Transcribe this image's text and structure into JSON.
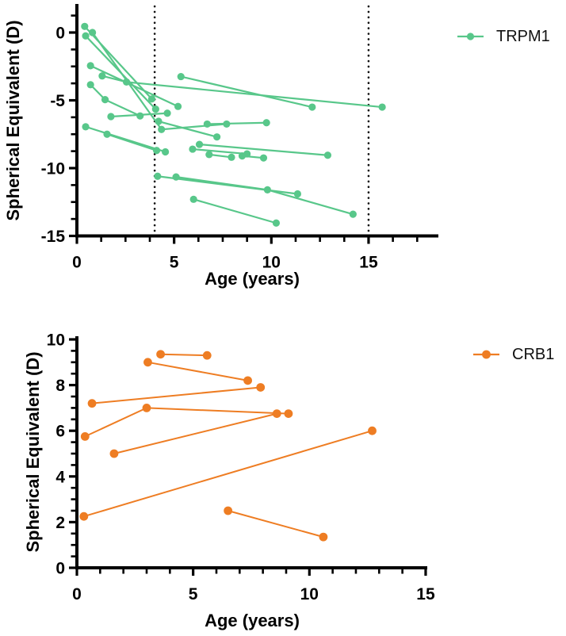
{
  "figure": {
    "background": "#ffffff",
    "text_color": "#000000"
  },
  "chart_data": [
    {
      "type": "line",
      "name": "TRPM1",
      "color": "#58C78A",
      "xlabel": "Age (years)",
      "ylabel": "Spherical Equivalent (D)",
      "xlim": [
        0,
        18.6
      ],
      "ylim": [
        -15,
        1.9
      ],
      "xticks": [
        0,
        5,
        10,
        15
      ],
      "yticks": [
        0,
        -5,
        -10,
        -15
      ],
      "x_minor_step": 1.25,
      "y_minor_step": 1.25,
      "reference_ages": [
        4,
        15
      ],
      "legend_position": "right-top",
      "grid": false,
      "series": [
        {
          "points": [
            [
              0.4,
              0.45
            ],
            [
              3.85,
              -4.9
            ]
          ]
        },
        {
          "points": [
            [
              0.45,
              -0.25
            ],
            [
              4.05,
              -5.65
            ]
          ]
        },
        {
          "points": [
            [
              0.8,
              0.0
            ],
            [
              4.35,
              -7.15
            ],
            [
              7.7,
              -6.75
            ]
          ]
        },
        {
          "points": [
            [
              0.7,
              -2.45
            ],
            [
              5.2,
              -5.45
            ]
          ]
        },
        {
          "points": [
            [
              1.3,
              -3.2
            ],
            [
              2.55,
              -3.65
            ],
            [
              15.7,
              -5.5
            ]
          ]
        },
        {
          "points": [
            [
              0.7,
              -3.85
            ],
            [
              1.45,
              -4.95
            ],
            [
              3.25,
              -6.15
            ]
          ]
        },
        {
          "points": [
            [
              1.75,
              -6.2
            ],
            [
              4.65,
              -5.95
            ]
          ]
        },
        {
          "points": [
            [
              4.2,
              -6.55
            ],
            [
              7.2,
              -7.7
            ]
          ]
        },
        {
          "points": [
            [
              6.7,
              -6.75
            ],
            [
              9.75,
              -6.65
            ]
          ]
        },
        {
          "points": [
            [
              0.45,
              -6.95
            ],
            [
              4.55,
              -8.8
            ]
          ]
        },
        {
          "points": [
            [
              1.55,
              -7.5
            ],
            [
              4.1,
              -8.7
            ]
          ]
        },
        {
          "points": [
            [
              5.35,
              -3.25
            ],
            [
              12.1,
              -5.5
            ]
          ]
        },
        {
          "points": [
            [
              5.95,
              -8.6
            ],
            [
              8.75,
              -8.95
            ]
          ]
        },
        {
          "points": [
            [
              6.3,
              -8.25
            ],
            [
              12.9,
              -9.05
            ]
          ]
        },
        {
          "points": [
            [
              6.8,
              -9.0
            ],
            [
              7.95,
              -9.2
            ]
          ]
        },
        {
          "points": [
            [
              8.5,
              -9.1
            ],
            [
              9.6,
              -9.25
            ]
          ]
        },
        {
          "points": [
            [
              4.15,
              -10.6
            ],
            [
              11.35,
              -11.9
            ]
          ]
        },
        {
          "points": [
            [
              5.1,
              -10.65
            ],
            [
              9.8,
              -11.6
            ],
            [
              14.2,
              -13.4
            ]
          ]
        },
        {
          "points": [
            [
              6.0,
              -12.3
            ],
            [
              10.25,
              -14.05
            ]
          ]
        }
      ]
    },
    {
      "type": "line",
      "name": "CRB1",
      "color": "#EE7D23",
      "xlabel": "Age (years)",
      "ylabel": "Spherical Equivalent (D)",
      "xlim": [
        0,
        15.1
      ],
      "ylim": [
        0,
        10.15
      ],
      "xticks": [
        0,
        5,
        10,
        15
      ],
      "yticks": [
        0,
        2,
        4,
        6,
        8,
        10
      ],
      "x_minor_step": 1,
      "y_minor_step": 0.5,
      "reference_ages": [],
      "legend_position": "right-top",
      "grid": false,
      "series": [
        {
          "points": [
            [
              3.6,
              9.35
            ],
            [
              5.6,
              9.3
            ]
          ]
        },
        {
          "points": [
            [
              3.05,
              9.0
            ],
            [
              7.35,
              8.2
            ]
          ]
        },
        {
          "points": [
            [
              0.65,
              7.2
            ],
            [
              7.9,
              7.9
            ]
          ]
        },
        {
          "points": [
            [
              0.35,
              5.75
            ],
            [
              3.0,
              7.0
            ],
            [
              9.1,
              6.75
            ]
          ]
        },
        {
          "points": [
            [
              1.6,
              5.0
            ],
            [
              8.6,
              6.75
            ]
          ]
        },
        {
          "points": [
            [
              0.3,
              2.25
            ],
            [
              12.7,
              6.0
            ]
          ]
        },
        {
          "points": [
            [
              6.5,
              2.5
            ],
            [
              10.6,
              1.35
            ]
          ]
        }
      ]
    }
  ]
}
